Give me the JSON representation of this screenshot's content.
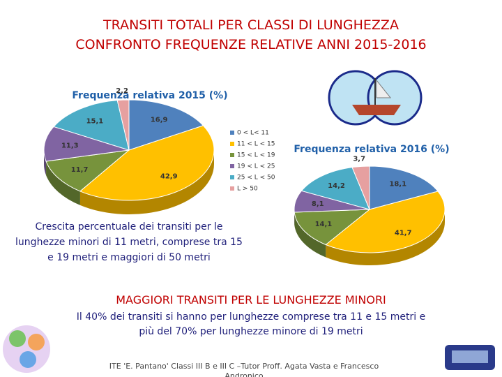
{
  "title": [
    "TRANSITI TOTALI PER CLASSI DI LUNGHEZZA",
    "CONFRONTO FREQUENZE RELATIVE ANNI 2015-2016"
  ],
  "chart_data": [
    {
      "type": "pie",
      "title": "Frequenza relativa 2015 (%)",
      "categories": [
        "0 < L< 11",
        "11 < L < 15",
        "15 < L < 19",
        "19 < L < 25",
        "25 < L < 50",
        "L > 50"
      ],
      "values": [
        16.9,
        42.9,
        11.7,
        11.3,
        15.1,
        2.2
      ],
      "value_labels": [
        "16,9",
        "42,9",
        "11,7",
        "11,3",
        "15,1",
        "2,2"
      ],
      "colors": [
        "#4f81bd",
        "#ffc000",
        "#77933c",
        "#8064a2",
        "#4bacc6",
        "#e6a0a0"
      ],
      "legend": "right"
    },
    {
      "type": "pie",
      "title": "Frequenza relativa 2016 (%)",
      "values": [
        18.1,
        41.7,
        14.1,
        8.1,
        14.2,
        3.7
      ],
      "value_labels": [
        "18,1",
        "41,7",
        "14,1",
        "8,1",
        "14,2",
        "3,7"
      ],
      "colors": [
        "#4f81bd",
        "#ffc000",
        "#77933c",
        "#8064a2",
        "#4bacc6",
        "#e6a0a0"
      ]
    }
  ],
  "caption": "Crescita percentuale dei transiti per le lunghezze minori di 11 metri, comprese tra 15 e 19 metri e maggiori di 50 metri",
  "heading": "MAGGIORI TRANSITI PER LE LUNGHEZZE MINORI",
  "body": "Il 40% dei transiti si hanno per lunghezze comprese tra 11 e 15 metri e più del 70% per lunghezze minore di 19 metri",
  "footer": "ITE 'E. Pantano' Classi III B e III C –Tutor Proff. Agata Vasta e Francesco Andronico"
}
